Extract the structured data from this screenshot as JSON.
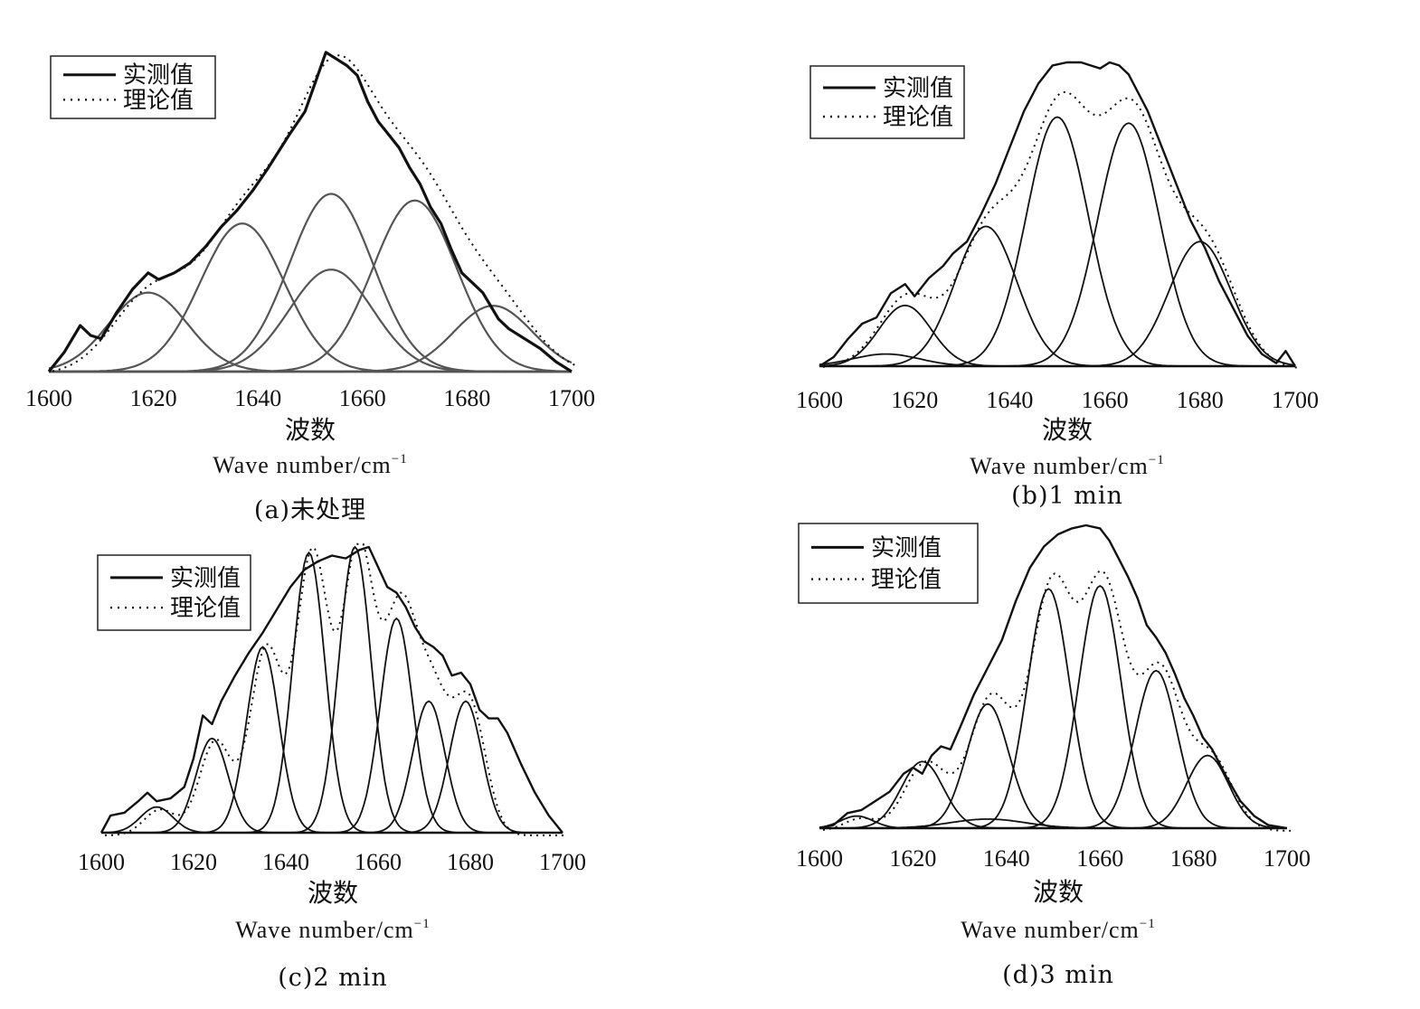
{
  "legend": {
    "measured": "实测值",
    "theoretical": "理论值"
  },
  "xlabel_cn": "波数",
  "xlabel_en": "Wave number/cm",
  "xlabel_sup": "−1",
  "colors": {
    "line": "#111111",
    "frame": "#222222"
  },
  "chart_data": [
    {
      "type": "line",
      "caption": "(a)未处理",
      "xlim": [
        1600,
        1700
      ],
      "ylim": [
        0,
        1.0
      ],
      "xticks": [
        "1600",
        "1620",
        "1640",
        "1660",
        "1680",
        "1700"
      ],
      "legend_placement": "top-left",
      "series_names": [
        "实测值",
        "理论值"
      ],
      "measured": [
        [
          1600,
          0.0
        ],
        [
          1603,
          0.06
        ],
        [
          1606,
          0.14
        ],
        [
          1608,
          0.11
        ],
        [
          1610,
          0.1
        ],
        [
          1613,
          0.18
        ],
        [
          1616,
          0.25
        ],
        [
          1619,
          0.3
        ],
        [
          1621,
          0.28
        ],
        [
          1624,
          0.3
        ],
        [
          1627,
          0.33
        ],
        [
          1630,
          0.38
        ],
        [
          1633,
          0.44
        ],
        [
          1636,
          0.49
        ],
        [
          1639,
          0.55
        ],
        [
          1642,
          0.62
        ],
        [
          1644,
          0.67
        ],
        [
          1646,
          0.72
        ],
        [
          1649,
          0.79
        ],
        [
          1651,
          0.88
        ],
        [
          1653,
          0.97
        ],
        [
          1655,
          0.95
        ],
        [
          1657,
          0.93
        ],
        [
          1659,
          0.9
        ],
        [
          1661,
          0.82
        ],
        [
          1663,
          0.76
        ],
        [
          1665,
          0.72
        ],
        [
          1667,
          0.68
        ],
        [
          1669,
          0.62
        ],
        [
          1671,
          0.57
        ],
        [
          1673,
          0.5
        ],
        [
          1675,
          0.45
        ],
        [
          1677,
          0.37
        ],
        [
          1679,
          0.3
        ],
        [
          1681,
          0.27
        ],
        [
          1683,
          0.24
        ],
        [
          1686,
          0.16
        ],
        [
          1688,
          0.13
        ],
        [
          1691,
          0.1
        ],
        [
          1694,
          0.07
        ],
        [
          1697,
          0.03
        ],
        [
          1700,
          0.0
        ]
      ],
      "peaks": [
        {
          "center": 1619,
          "height": 0.24,
          "width": 7.5
        },
        {
          "center": 1637,
          "height": 0.45,
          "width": 8.0
        },
        {
          "center": 1654,
          "height": 0.54,
          "width": 8.0
        },
        {
          "center": 1654,
          "height": 0.31,
          "width": 8.0
        },
        {
          "center": 1670,
          "height": 0.52,
          "width": 8.0
        },
        {
          "center": 1685,
          "height": 0.2,
          "width": 7.5
        }
      ]
    },
    {
      "type": "line",
      "caption": "(b)1  min",
      "xlim": [
        1600,
        1700
      ],
      "ylim": [
        0,
        1.0
      ],
      "xticks": [
        "1600",
        "1620",
        "1640",
        "1660",
        "1680",
        "1700"
      ],
      "legend_placement": "top-left",
      "series_names": [
        "实测值",
        "理论值"
      ],
      "measured": [
        [
          1600,
          0.0
        ],
        [
          1603,
          0.03
        ],
        [
          1606,
          0.09
        ],
        [
          1609,
          0.14
        ],
        [
          1612,
          0.16
        ],
        [
          1615,
          0.24
        ],
        [
          1618,
          0.27
        ],
        [
          1620,
          0.23
        ],
        [
          1623,
          0.29
        ],
        [
          1626,
          0.33
        ],
        [
          1628,
          0.37
        ],
        [
          1631,
          0.41
        ],
        [
          1634,
          0.5
        ],
        [
          1637,
          0.6
        ],
        [
          1640,
          0.72
        ],
        [
          1643,
          0.84
        ],
        [
          1646,
          0.93
        ],
        [
          1649,
          0.99
        ],
        [
          1652,
          1.0
        ],
        [
          1655,
          1.0
        ],
        [
          1657,
          0.99
        ],
        [
          1659,
          0.98
        ],
        [
          1661,
          1.0
        ],
        [
          1663,
          0.99
        ],
        [
          1665,
          0.96
        ],
        [
          1667,
          0.9
        ],
        [
          1669,
          0.84
        ],
        [
          1672,
          0.72
        ],
        [
          1675,
          0.6
        ],
        [
          1678,
          0.48
        ],
        [
          1681,
          0.39
        ],
        [
          1684,
          0.28
        ],
        [
          1687,
          0.19
        ],
        [
          1690,
          0.1
        ],
        [
          1693,
          0.04
        ],
        [
          1696,
          0.01
        ],
        [
          1698,
          0.05
        ],
        [
          1700,
          0.0
        ]
      ],
      "peaks": [
        {
          "center": 1614,
          "height": 0.04,
          "width": 7.0
        },
        {
          "center": 1618,
          "height": 0.2,
          "width": 5.5
        },
        {
          "center": 1635,
          "height": 0.46,
          "width": 6.5
        },
        {
          "center": 1650,
          "height": 0.82,
          "width": 6.5
        },
        {
          "center": 1665,
          "height": 0.8,
          "width": 6.5
        },
        {
          "center": 1680,
          "height": 0.41,
          "width": 6.5
        }
      ]
    },
    {
      "type": "line",
      "caption": "(c)2  min",
      "xlim": [
        1600,
        1700
      ],
      "ylim": [
        0,
        1.0
      ],
      "xticks": [
        "1600",
        "1620",
        "1640",
        "1660",
        "1680",
        "1700"
      ],
      "legend_placement": "top-left",
      "series_names": [
        "实测值",
        "理论值"
      ],
      "measured": [
        [
          1600,
          0.0
        ],
        [
          1602,
          0.06
        ],
        [
          1605,
          0.07
        ],
        [
          1608,
          0.11
        ],
        [
          1610,
          0.14
        ],
        [
          1612,
          0.11
        ],
        [
          1615,
          0.12
        ],
        [
          1618,
          0.16
        ],
        [
          1620,
          0.26
        ],
        [
          1622,
          0.41
        ],
        [
          1624,
          0.38
        ],
        [
          1626,
          0.46
        ],
        [
          1629,
          0.55
        ],
        [
          1632,
          0.63
        ],
        [
          1635,
          0.7
        ],
        [
          1638,
          0.78
        ],
        [
          1641,
          0.86
        ],
        [
          1644,
          0.92
        ],
        [
          1647,
          0.95
        ],
        [
          1650,
          0.97
        ],
        [
          1653,
          0.96
        ],
        [
          1656,
          0.99
        ],
        [
          1658,
          1.0
        ],
        [
          1660,
          0.93
        ],
        [
          1662,
          0.86
        ],
        [
          1664,
          0.84
        ],
        [
          1666,
          0.79
        ],
        [
          1668,
          0.72
        ],
        [
          1670,
          0.67
        ],
        [
          1672,
          0.65
        ],
        [
          1674,
          0.62
        ],
        [
          1676,
          0.55
        ],
        [
          1678,
          0.56
        ],
        [
          1680,
          0.52
        ],
        [
          1682,
          0.43
        ],
        [
          1684,
          0.4
        ],
        [
          1686,
          0.4
        ],
        [
          1688,
          0.35
        ],
        [
          1691,
          0.24
        ],
        [
          1694,
          0.14
        ],
        [
          1697,
          0.06
        ],
        [
          1700,
          0.0
        ]
      ],
      "peaks": [
        {
          "center": 1612,
          "height": 0.09,
          "width": 3.5
        },
        {
          "center": 1624,
          "height": 0.33,
          "width": 3.5
        },
        {
          "center": 1635,
          "height": 0.65,
          "width": 3.5
        },
        {
          "center": 1645,
          "height": 0.98,
          "width": 3.5
        },
        {
          "center": 1655,
          "height": 1.0,
          "width": 3.5
        },
        {
          "center": 1664,
          "height": 0.75,
          "width": 3.5
        },
        {
          "center": 1671,
          "height": 0.46,
          "width": 3.5
        },
        {
          "center": 1679,
          "height": 0.46,
          "width": 3.5
        }
      ]
    },
    {
      "type": "line",
      "caption": "(d)3  min",
      "xlim": [
        1600,
        1700
      ],
      "ylim": [
        0,
        1.0
      ],
      "xticks": [
        "1600",
        "1620",
        "1640",
        "1660",
        "1680",
        "1700"
      ],
      "legend_placement": "top-left",
      "series_names": [
        "实测值",
        "理论值"
      ],
      "measured": [
        [
          1600,
          0.0
        ],
        [
          1603,
          0.01
        ],
        [
          1606,
          0.05
        ],
        [
          1609,
          0.06
        ],
        [
          1612,
          0.09
        ],
        [
          1615,
          0.12
        ],
        [
          1618,
          0.18
        ],
        [
          1620,
          0.2
        ],
        [
          1622,
          0.18
        ],
        [
          1624,
          0.24
        ],
        [
          1626,
          0.27
        ],
        [
          1628,
          0.26
        ],
        [
          1630,
          0.33
        ],
        [
          1633,
          0.44
        ],
        [
          1636,
          0.53
        ],
        [
          1639,
          0.62
        ],
        [
          1642,
          0.75
        ],
        [
          1645,
          0.86
        ],
        [
          1648,
          0.93
        ],
        [
          1651,
          0.97
        ],
        [
          1654,
          0.99
        ],
        [
          1657,
          1.0
        ],
        [
          1660,
          0.99
        ],
        [
          1662,
          0.95
        ],
        [
          1664,
          0.89
        ],
        [
          1666,
          0.83
        ],
        [
          1668,
          0.76
        ],
        [
          1670,
          0.67
        ],
        [
          1672,
          0.63
        ],
        [
          1674,
          0.58
        ],
        [
          1676,
          0.51
        ],
        [
          1678,
          0.43
        ],
        [
          1680,
          0.37
        ],
        [
          1682,
          0.3
        ],
        [
          1684,
          0.26
        ],
        [
          1687,
          0.17
        ],
        [
          1690,
          0.09
        ],
        [
          1693,
          0.04
        ],
        [
          1696,
          0.01
        ],
        [
          1700,
          0.0
        ]
      ],
      "peaks": [
        {
          "center": 1608,
          "height": 0.04,
          "width": 3.5
        },
        {
          "center": 1622,
          "height": 0.22,
          "width": 4.5
        },
        {
          "center": 1636,
          "height": 0.41,
          "width": 4.5
        },
        {
          "center": 1649,
          "height": 0.79,
          "width": 4.5
        },
        {
          "center": 1660,
          "height": 0.8,
          "width": 4.5
        },
        {
          "center": 1672,
          "height": 0.52,
          "width": 4.5
        },
        {
          "center": 1683,
          "height": 0.24,
          "width": 4.5
        },
        {
          "center": 1636,
          "height": 0.03,
          "width": 8.0
        }
      ]
    }
  ]
}
